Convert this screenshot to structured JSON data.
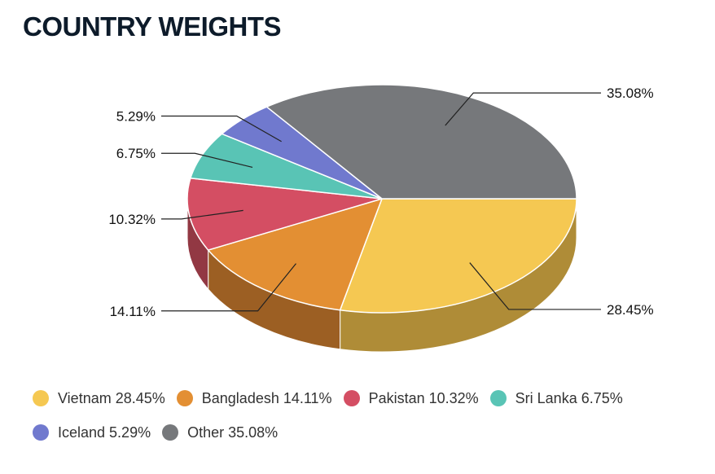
{
  "title": "COUNTRY WEIGHTS",
  "chart_data": {
    "type": "pie",
    "title": "COUNTRY WEIGHTS",
    "three_d": true,
    "legend_position": "bottom",
    "slices": [
      {
        "name": "Vietnam",
        "value": 28.45,
        "label": "28.45%",
        "legend": "Vietnam 28.45%",
        "color": "#F5C852",
        "side_color": "#AF8C37"
      },
      {
        "name": "Bangladesh",
        "value": 14.11,
        "label": "14.11%",
        "legend": "Bangladesh 14.11%",
        "color": "#E38F33",
        "side_color": "#9C5F23"
      },
      {
        "name": "Pakistan",
        "value": 10.32,
        "label": "10.32%",
        "legend": "Pakistan 10.32%",
        "color": "#D44E63",
        "side_color": "#923843"
      },
      {
        "name": "Sri Lanka",
        "value": 6.75,
        "label": "6.75%",
        "legend": "Sri Lanka 6.75%",
        "color": "#59C4B5",
        "side_color": "#3E897F"
      },
      {
        "name": "Iceland",
        "value": 5.29,
        "label": "5.29%",
        "legend": "Iceland 5.29%",
        "color": "#7079CE",
        "side_color": "#4E5591"
      },
      {
        "name": "Other",
        "value": 35.08,
        "label": "35.08%",
        "legend": "Other 35.08%",
        "color": "#76787B",
        "side_color": "#525456"
      }
    ]
  }
}
